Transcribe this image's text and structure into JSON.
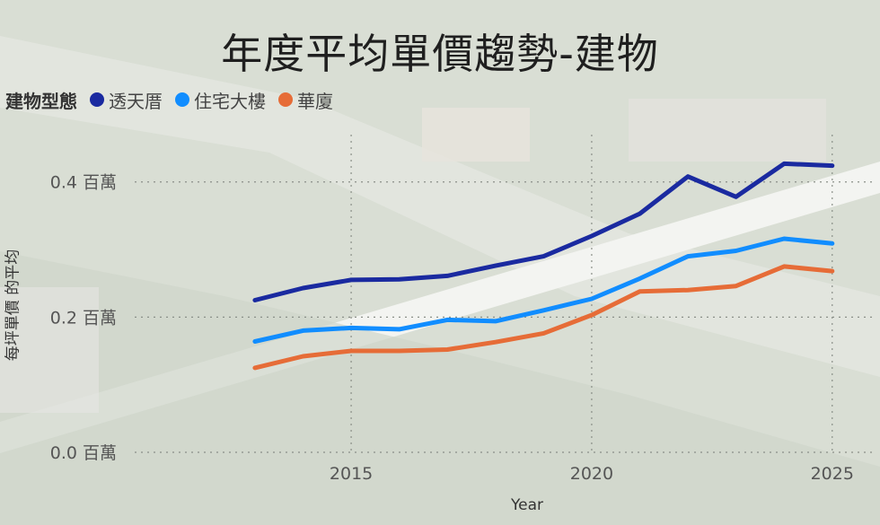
{
  "chart_data": {
    "type": "line",
    "title": "年度平均單價趨勢-建物",
    "legend_title": "建物型態",
    "xlabel": "Year",
    "ylabel": "每坪單價 的平均",
    "xlim": [
      2010.5,
      2025.9
    ],
    "ylim": [
      0,
      0.47
    ],
    "x_ticks": [
      2015,
      2020,
      2025
    ],
    "y_ticks": [
      {
        "value": 0.0,
        "label": "0.0 百萬"
      },
      {
        "value": 0.2,
        "label": "0.2 百萬"
      },
      {
        "value": 0.4,
        "label": "0.4 百萬"
      }
    ],
    "x": [
      2013,
      2014,
      2015,
      2016,
      2017,
      2018,
      2019,
      2020,
      2021,
      2022,
      2023,
      2024,
      2025
    ],
    "series": [
      {
        "name": "透天厝",
        "color": "#1a2aa0",
        "values": [
          0.225,
          0.243,
          0.255,
          0.256,
          0.261,
          0.276,
          0.29,
          0.32,
          0.353,
          0.408,
          0.378,
          0.427,
          0.424
        ]
      },
      {
        "name": "住宅大樓",
        "color": "#118dff",
        "values": [
          0.164,
          0.18,
          0.184,
          0.182,
          0.196,
          0.194,
          0.21,
          0.227,
          0.257,
          0.29,
          0.298,
          0.316,
          0.309
        ]
      },
      {
        "name": "華廈",
        "color": "#e66c37",
        "values": [
          0.125,
          0.142,
          0.15,
          0.15,
          0.152,
          0.163,
          0.176,
          0.203,
          0.238,
          0.24,
          0.246,
          0.275,
          0.268
        ]
      }
    ]
  }
}
